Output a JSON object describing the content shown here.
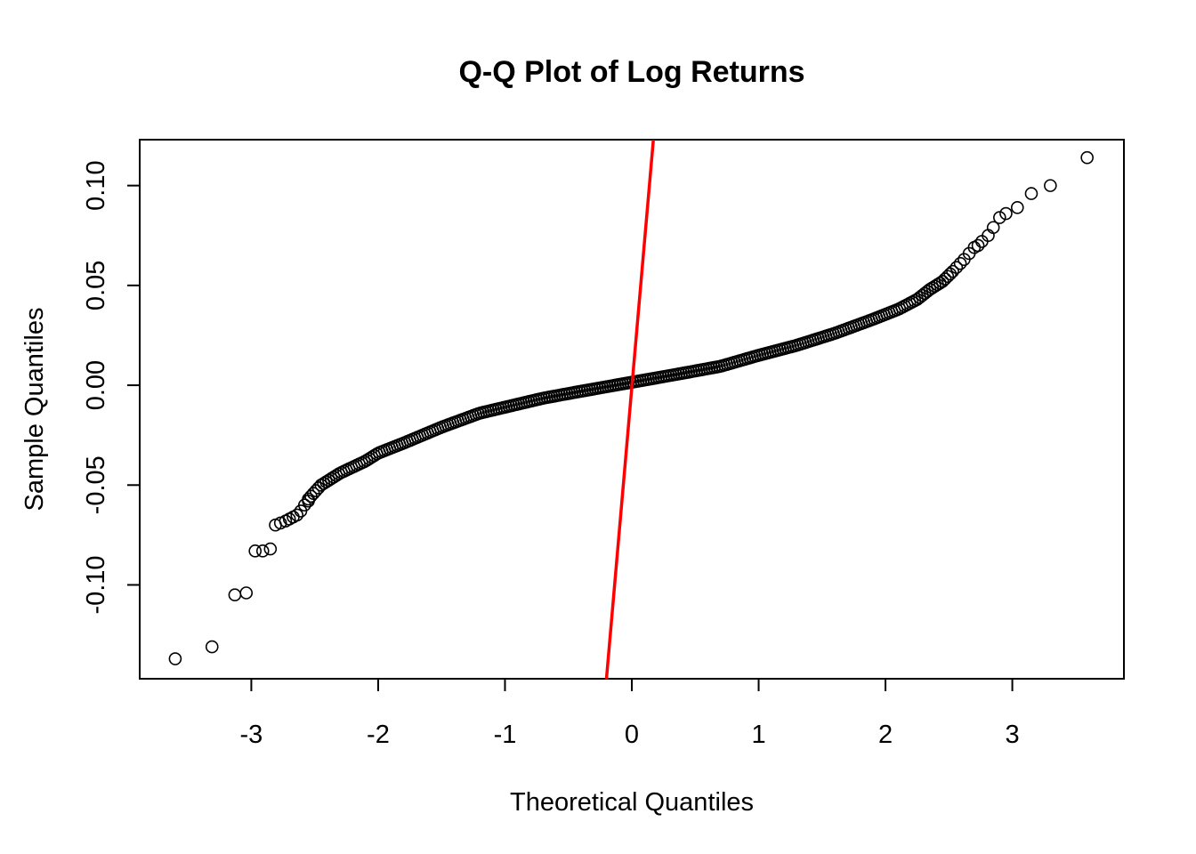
{
  "chart_data": {
    "type": "scatter",
    "title": "Q-Q Plot of Log Returns",
    "xlabel": "Theoretical Quantiles",
    "ylabel": "Sample Quantiles",
    "xlim": [
      -3.88,
      3.88
    ],
    "ylim": [
      -0.147,
      0.123
    ],
    "x_ticks": [
      -3,
      -2,
      -1,
      0,
      1,
      2,
      3
    ],
    "y_ticks": [
      -0.1,
      -0.05,
      0.0,
      0.05,
      0.1
    ],
    "x_tick_labels": [
      "-3",
      "-2",
      "-1",
      "0",
      "1",
      "2",
      "3"
    ],
    "y_tick_labels": [
      "-0.10",
      "-0.05",
      "0.00",
      "0.05",
      "0.10"
    ],
    "grid": false,
    "marker": "open-circle",
    "reference_line": {
      "color": "#ff0000",
      "points": [
        [
          -0.2,
          -0.147
        ],
        [
          0.17,
          0.123
        ]
      ]
    },
    "tail_points": [
      {
        "x": -3.6,
        "y": -0.137
      },
      {
        "x": -3.31,
        "y": -0.131
      },
      {
        "x": -3.13,
        "y": -0.105
      },
      {
        "x": -3.04,
        "y": -0.104
      },
      {
        "x": -2.97,
        "y": -0.083
      },
      {
        "x": -2.91,
        "y": -0.083
      },
      {
        "x": -2.85,
        "y": -0.082
      },
      {
        "x": -2.81,
        "y": -0.07
      },
      {
        "x": -2.77,
        "y": -0.069
      },
      {
        "x": -2.73,
        "y": -0.068
      },
      {
        "x": -2.7,
        "y": -0.067
      },
      {
        "x": -2.67,
        "y": -0.066
      },
      {
        "x": -2.64,
        "y": -0.065
      },
      {
        "x": -2.61,
        "y": -0.063
      },
      {
        "x": -2.58,
        "y": -0.06
      },
      {
        "x": -2.55,
        "y": -0.058
      },
      {
        "x": 2.53,
        "y": 0.057
      },
      {
        "x": 2.56,
        "y": 0.059
      },
      {
        "x": 2.59,
        "y": 0.061
      },
      {
        "x": 2.62,
        "y": 0.063
      },
      {
        "x": 2.66,
        "y": 0.066
      },
      {
        "x": 2.7,
        "y": 0.069
      },
      {
        "x": 2.73,
        "y": 0.07
      },
      {
        "x": 2.76,
        "y": 0.072
      },
      {
        "x": 2.81,
        "y": 0.075
      },
      {
        "x": 2.85,
        "y": 0.079
      },
      {
        "x": 2.9,
        "y": 0.084
      },
      {
        "x": 2.95,
        "y": 0.086
      },
      {
        "x": 3.04,
        "y": 0.089
      },
      {
        "x": 3.15,
        "y": 0.096
      },
      {
        "x": 3.3,
        "y": 0.1
      },
      {
        "x": 3.59,
        "y": 0.114
      }
    ],
    "body_curve": [
      {
        "x": -2.55,
        "y": -0.057
      },
      {
        "x": -2.45,
        "y": -0.05
      },
      {
        "x": -2.3,
        "y": -0.044
      },
      {
        "x": -2.1,
        "y": -0.038
      },
      {
        "x": -2.0,
        "y": -0.034
      },
      {
        "x": -1.8,
        "y": -0.029
      },
      {
        "x": -1.5,
        "y": -0.021
      },
      {
        "x": -1.2,
        "y": -0.014
      },
      {
        "x": -1.0,
        "y": -0.011
      },
      {
        "x": -0.7,
        "y": -0.0065
      },
      {
        "x": -0.4,
        "y": -0.003
      },
      {
        "x": 0.0,
        "y": 0.0015
      },
      {
        "x": 0.4,
        "y": 0.006
      },
      {
        "x": 0.7,
        "y": 0.0095
      },
      {
        "x": 1.0,
        "y": 0.015
      },
      {
        "x": 1.3,
        "y": 0.02
      },
      {
        "x": 1.6,
        "y": 0.026
      },
      {
        "x": 1.9,
        "y": 0.033
      },
      {
        "x": 2.1,
        "y": 0.038
      },
      {
        "x": 2.25,
        "y": 0.043
      },
      {
        "x": 2.35,
        "y": 0.048
      },
      {
        "x": 2.45,
        "y": 0.052
      },
      {
        "x": 2.53,
        "y": 0.057
      }
    ]
  }
}
